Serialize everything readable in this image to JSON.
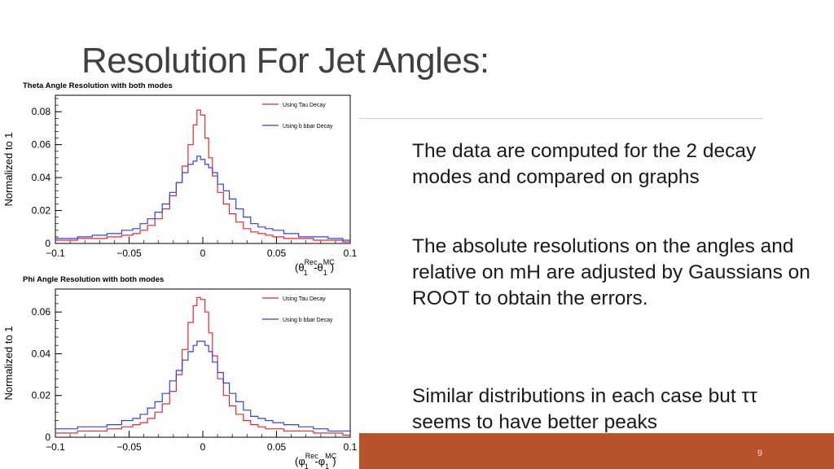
{
  "slide": {
    "title": "Resolution For Jet Angles:",
    "page_number": "9",
    "bullets": [
      "The data are computed for the 2 decay modes and compared on graphs",
      "The absolute resolutions on the angles and relative on mH are adjusted by Gaussians on ROOT to obtain the errors.",
      "Similar distributions in each case but ττ seems to have better peaks"
    ],
    "colors": {
      "accent_bar": "#b8532c",
      "tau_series": "#e8262d",
      "bbbar_series": "#2f3ff0"
    }
  },
  "chart_data": [
    {
      "type": "line",
      "title": "Theta Angle Resolution with both modes",
      "ylabel": "Normalized to 1",
      "xlabel_main": "(θ",
      "xlabel_sub1": "1",
      "xlabel_sup1": "Rec",
      "xlabel_mid": " -θ",
      "xlabel_sub2": "1",
      "xlabel_sup2": "MC",
      "xlabel_end": ")",
      "xlim": [
        -0.1,
        0.1
      ],
      "ylim": [
        0,
        0.09
      ],
      "xticks": [
        "−0.1",
        "−0.05",
        "0",
        "0.05",
        "0.1"
      ],
      "yticks": [
        "0",
        "0.02",
        "0.04",
        "0.06",
        "0.08"
      ],
      "ytick_values": [
        0,
        0.02,
        0.04,
        0.06,
        0.08
      ],
      "legend_position": "top-right",
      "series": [
        {
          "name": "Using Tau Decay",
          "color": "#e8262d",
          "x": [
            -0.1,
            -0.09,
            -0.08,
            -0.07,
            -0.06,
            -0.05,
            -0.045,
            -0.04,
            -0.035,
            -0.03,
            -0.025,
            -0.02,
            -0.016,
            -0.012,
            -0.008,
            -0.005,
            -0.003,
            0,
            0.003,
            0.005,
            0.008,
            0.012,
            0.016,
            0.02,
            0.025,
            0.03,
            0.035,
            0.04,
            0.045,
            0.05,
            0.06,
            0.07,
            0.08,
            0.09,
            0.1
          ],
          "values": [
            0.002,
            0.002,
            0.003,
            0.003,
            0.004,
            0.005,
            0.006,
            0.008,
            0.011,
            0.015,
            0.021,
            0.029,
            0.037,
            0.047,
            0.06,
            0.072,
            0.081,
            0.078,
            0.064,
            0.052,
            0.041,
            0.031,
            0.024,
            0.018,
            0.013,
            0.009,
            0.007,
            0.006,
            0.005,
            0.004,
            0.003,
            0.003,
            0.002,
            0.002,
            0.001
          ]
        },
        {
          "name": "Using b bbar Decay",
          "color": "#2f3ff0",
          "x": [
            -0.1,
            -0.09,
            -0.08,
            -0.07,
            -0.06,
            -0.05,
            -0.045,
            -0.04,
            -0.035,
            -0.03,
            -0.025,
            -0.02,
            -0.016,
            -0.012,
            -0.008,
            -0.005,
            -0.003,
            0,
            0.003,
            0.005,
            0.008,
            0.012,
            0.016,
            0.02,
            0.025,
            0.03,
            0.035,
            0.04,
            0.045,
            0.05,
            0.06,
            0.07,
            0.08,
            0.09,
            0.1
          ],
          "values": [
            0.003,
            0.003,
            0.004,
            0.005,
            0.006,
            0.008,
            0.009,
            0.012,
            0.015,
            0.019,
            0.024,
            0.031,
            0.037,
            0.043,
            0.048,
            0.05,
            0.053,
            0.051,
            0.048,
            0.046,
            0.043,
            0.036,
            0.032,
            0.027,
            0.021,
            0.016,
            0.012,
            0.01,
            0.009,
            0.008,
            0.006,
            0.004,
            0.004,
            0.003,
            0.002
          ]
        }
      ]
    },
    {
      "type": "line",
      "title": "Phi Angle Resolution with both modes",
      "ylabel": "Normalized to 1",
      "xlabel_main": "(φ",
      "xlabel_sub1": "1",
      "xlabel_sup1": "Rec",
      "xlabel_mid": " -φ",
      "xlabel_sub2": "1",
      "xlabel_sup2": "MC",
      "xlabel_end": ")",
      "xlim": [
        -0.1,
        0.1
      ],
      "ylim": [
        0,
        0.071
      ],
      "xticks": [
        "−0.1",
        "−0.05",
        "0",
        "0.05",
        "0.1"
      ],
      "yticks": [
        "0",
        "0.02",
        "0.04",
        "0.06"
      ],
      "ytick_values": [
        0,
        0.02,
        0.04,
        0.06
      ],
      "legend_position": "top-right",
      "series": [
        {
          "name": "Using Tau Decay",
          "color": "#e8262d",
          "x": [
            -0.1,
            -0.09,
            -0.08,
            -0.07,
            -0.06,
            -0.05,
            -0.045,
            -0.04,
            -0.035,
            -0.03,
            -0.025,
            -0.02,
            -0.016,
            -0.012,
            -0.008,
            -0.005,
            -0.003,
            0,
            0.003,
            0.005,
            0.008,
            0.012,
            0.016,
            0.02,
            0.025,
            0.03,
            0.035,
            0.04,
            0.045,
            0.05,
            0.06,
            0.07,
            0.08,
            0.09,
            0.1
          ],
          "values": [
            0.002,
            0.002,
            0.003,
            0.003,
            0.004,
            0.005,
            0.006,
            0.007,
            0.009,
            0.012,
            0.016,
            0.022,
            0.03,
            0.042,
            0.055,
            0.063,
            0.067,
            0.066,
            0.06,
            0.05,
            0.039,
            0.028,
            0.02,
            0.015,
            0.011,
            0.008,
            0.006,
            0.005,
            0.004,
            0.004,
            0.003,
            0.003,
            0.002,
            0.002,
            0.001
          ]
        },
        {
          "name": "Using b bbar Decay",
          "color": "#2f3ff0",
          "x": [
            -0.1,
            -0.09,
            -0.08,
            -0.07,
            -0.06,
            -0.05,
            -0.045,
            -0.04,
            -0.035,
            -0.03,
            -0.025,
            -0.02,
            -0.016,
            -0.012,
            -0.008,
            -0.005,
            -0.003,
            0,
            0.003,
            0.005,
            0.008,
            0.012,
            0.016,
            0.02,
            0.025,
            0.03,
            0.035,
            0.04,
            0.045,
            0.05,
            0.06,
            0.07,
            0.08,
            0.09,
            0.1
          ],
          "values": [
            0.004,
            0.004,
            0.005,
            0.005,
            0.006,
            0.008,
            0.009,
            0.011,
            0.014,
            0.017,
            0.021,
            0.027,
            0.032,
            0.037,
            0.041,
            0.044,
            0.046,
            0.046,
            0.044,
            0.041,
            0.036,
            0.031,
            0.026,
            0.021,
            0.017,
            0.013,
            0.01,
            0.009,
            0.008,
            0.007,
            0.006,
            0.005,
            0.004,
            0.003,
            0.003
          ]
        }
      ]
    }
  ]
}
